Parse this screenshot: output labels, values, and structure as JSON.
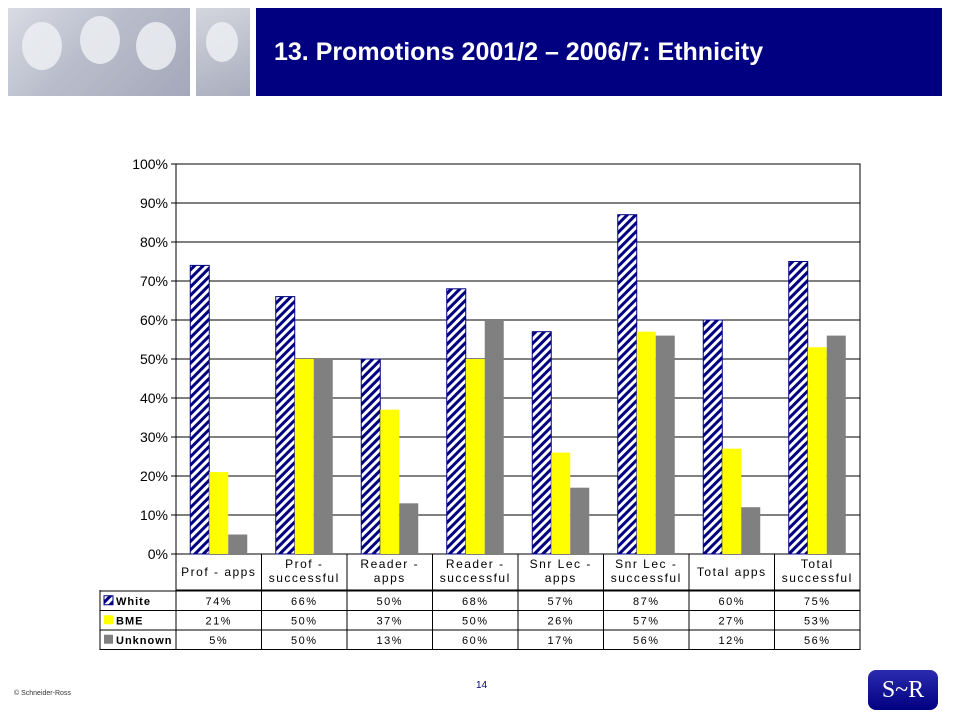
{
  "header": {
    "title": "13. Promotions 2001/2 – 2006/7: Ethnicity"
  },
  "footer": {
    "copyright": "© Schneider-Ross",
    "page_number": "14",
    "logo_text": "S~R"
  },
  "colors": {
    "banner": "#000080",
    "white_series_stroke": "#000080",
    "bme": "#ffff00",
    "unknown": "#808080"
  },
  "chart_data": {
    "type": "bar",
    "title": "",
    "categories": [
      [
        "Prof - apps"
      ],
      [
        "Prof -",
        "successful"
      ],
      [
        "Reader -",
        "apps"
      ],
      [
        "Reader -",
        "successful"
      ],
      [
        "Snr Lec -",
        "apps"
      ],
      [
        "Snr Lec -",
        "successful"
      ],
      [
        "Total apps"
      ],
      [
        "Total",
        "successful"
      ]
    ],
    "series": [
      {
        "name": "White",
        "pattern": "hatch",
        "values": [
          74,
          66,
          50,
          68,
          57,
          87,
          60,
          75
        ],
        "labels": [
          "74%",
          "66%",
          "50%",
          "68%",
          "57%",
          "87%",
          "60%",
          "75%"
        ]
      },
      {
        "name": "BME",
        "pattern": "solid-yellow",
        "values": [
          21,
          50,
          37,
          50,
          26,
          57,
          27,
          53
        ],
        "labels": [
          "21%",
          "50%",
          "37%",
          "50%",
          "26%",
          "57%",
          "27%",
          "53%"
        ]
      },
      {
        "name": "Unknown",
        "pattern": "solid-grey",
        "values": [
          5,
          50,
          13,
          60,
          17,
          56,
          12,
          56
        ],
        "labels": [
          "5%",
          "50%",
          "13%",
          "60%",
          "17%",
          "56%",
          "12%",
          "56%"
        ]
      }
    ],
    "y_ticks": [
      "0%",
      "10%",
      "20%",
      "30%",
      "40%",
      "50%",
      "60%",
      "70%",
      "80%",
      "90%",
      "100%"
    ],
    "ylim": [
      0,
      100
    ],
    "grid": true,
    "legend": "data-table"
  }
}
